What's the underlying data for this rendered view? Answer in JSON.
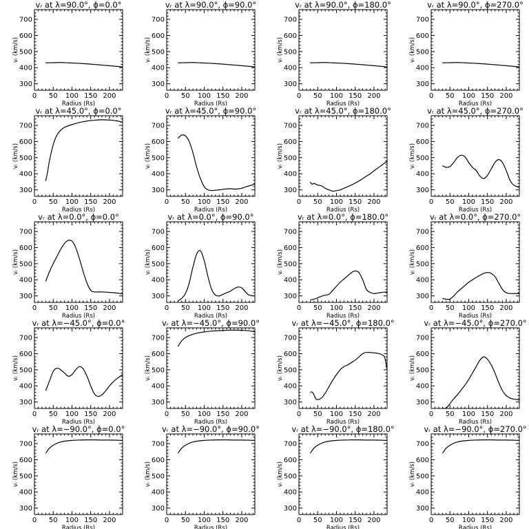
{
  "chart_data": [
    {
      "type": "line",
      "title": "vᵣ at λ=90.0°, ϕ=0.0°",
      "xlabel": "Radius (Rs)",
      "ylabel": "vᵣ (km/s)",
      "xlim": [
        0,
        235
      ],
      "ylim": [
        260,
        760
      ],
      "xticks": [
        0,
        50,
        100,
        150,
        200
      ],
      "yticks": [
        300,
        400,
        500,
        600,
        700
      ],
      "x": [
        30,
        50,
        70,
        90,
        110,
        130,
        150,
        170,
        190,
        210,
        235
      ],
      "y": [
        430,
        431,
        432,
        430,
        428,
        425,
        422,
        418,
        414,
        410,
        405
      ]
    },
    {
      "type": "line",
      "title": "vᵣ at λ=90.0°, ϕ=90.0°",
      "xlabel": "Radius (Rs)",
      "ylabel": "vᵣ (km/s)",
      "xlim": [
        0,
        235
      ],
      "ylim": [
        260,
        760
      ],
      "xticks": [
        0,
        50,
        100,
        150,
        200
      ],
      "yticks": [
        300,
        400,
        500,
        600,
        700
      ],
      "x": [
        30,
        50,
        70,
        90,
        110,
        130,
        150,
        170,
        190,
        210,
        235
      ],
      "y": [
        430,
        431,
        432,
        430,
        428,
        425,
        422,
        418,
        414,
        410,
        405
      ]
    },
    {
      "type": "line",
      "title": "vᵣ at λ=90.0°, ϕ=180.0°",
      "xlabel": "Radius (Rs)",
      "ylabel": "vᵣ (km/s)",
      "xlim": [
        0,
        235
      ],
      "ylim": [
        260,
        760
      ],
      "xticks": [
        0,
        50,
        100,
        150,
        200
      ],
      "yticks": [
        300,
        400,
        500,
        600,
        700
      ],
      "x": [
        30,
        50,
        70,
        90,
        110,
        130,
        150,
        170,
        190,
        210,
        235
      ],
      "y": [
        430,
        431,
        432,
        430,
        428,
        425,
        422,
        418,
        414,
        410,
        405
      ]
    },
    {
      "type": "line",
      "title": "vᵣ at λ=90.0°, ϕ=270.0°",
      "xlabel": "Radius (Rs)",
      "ylabel": "vᵣ (km/s)",
      "xlim": [
        0,
        235
      ],
      "ylim": [
        260,
        760
      ],
      "xticks": [
        0,
        50,
        100,
        150,
        200
      ],
      "yticks": [
        300,
        400,
        500,
        600,
        700
      ],
      "x": [
        30,
        50,
        70,
        90,
        110,
        130,
        150,
        170,
        190,
        210,
        235
      ],
      "y": [
        430,
        431,
        432,
        430,
        428,
        425,
        422,
        418,
        414,
        410,
        405
      ]
    },
    {
      "type": "line",
      "title": "vᵣ at λ=45.0°, ϕ=0.0°",
      "xlabel": "Radius (Rs)",
      "ylabel": "vᵣ (km/s)",
      "xlim": [
        0,
        235
      ],
      "ylim": [
        260,
        760
      ],
      "xticks": [
        0,
        50,
        100,
        150,
        200
      ],
      "yticks": [
        300,
        400,
        500,
        600,
        700
      ],
      "x": [
        30,
        35,
        40,
        50,
        60,
        70,
        80,
        100,
        120,
        140,
        160,
        180,
        200,
        220,
        235
      ],
      "y": [
        355,
        410,
        480,
        580,
        640,
        670,
        688,
        705,
        718,
        727,
        732,
        735,
        733,
        728,
        720
      ]
    },
    {
      "type": "line",
      "title": "vᵣ at λ=45.0°, ϕ=90.0°",
      "xlabel": "Radius (Rs)",
      "ylabel": "vᵣ (km/s)",
      "xlim": [
        0,
        235
      ],
      "ylim": [
        260,
        760
      ],
      "xticks": [
        0,
        50,
        100,
        150,
        200
      ],
      "yticks": [
        300,
        400,
        500,
        600,
        700
      ],
      "x": [
        30,
        40,
        50,
        60,
        70,
        80,
        90,
        100,
        110,
        120,
        130,
        140,
        150,
        160,
        170,
        180,
        190,
        200,
        210,
        220,
        235
      ],
      "y": [
        620,
        640,
        635,
        600,
        530,
        440,
        370,
        320,
        300,
        296,
        298,
        300,
        303,
        306,
        307,
        305,
        306,
        310,
        318,
        325,
        335
      ]
    },
    {
      "type": "line",
      "title": "vᵣ at λ=45.0°, ϕ=180.0°",
      "xlabel": "Radius (Rs)",
      "ylabel": "vᵣ (km/s)",
      "xlim": [
        0,
        235
      ],
      "ylim": [
        260,
        760
      ],
      "xticks": [
        0,
        50,
        100,
        150,
        200
      ],
      "yticks": [
        300,
        400,
        500,
        600,
        700
      ],
      "x": [
        30,
        35,
        40,
        50,
        60,
        70,
        80,
        90,
        100,
        110,
        120,
        130,
        140,
        150,
        160,
        170,
        180,
        190,
        200,
        210,
        220,
        235
      ],
      "y": [
        350,
        335,
        340,
        330,
        325,
        310,
        300,
        292,
        295,
        300,
        310,
        320,
        330,
        342,
        355,
        370,
        385,
        400,
        418,
        435,
        452,
        478
      ]
    },
    {
      "type": "line",
      "title": "vᵣ at λ=45.0°, ϕ=270.0°",
      "xlabel": "Radius (Rs)",
      "ylabel": "vᵣ (km/s)",
      "xlim": [
        0,
        235
      ],
      "ylim": [
        260,
        760
      ],
      "xticks": [
        0,
        50,
        100,
        150,
        200
      ],
      "yticks": [
        300,
        400,
        500,
        600,
        700
      ],
      "x": [
        30,
        40,
        50,
        60,
        70,
        80,
        90,
        100,
        110,
        120,
        130,
        140,
        150,
        160,
        170,
        180,
        190,
        200,
        210,
        220,
        235
      ],
      "y": [
        450,
        440,
        445,
        470,
        500,
        515,
        505,
        470,
        440,
        420,
        385,
        370,
        390,
        430,
        470,
        488,
        470,
        420,
        360,
        330,
        315
      ]
    },
    {
      "type": "line",
      "title": "vᵣ at λ=0.0°, ϕ=0.0°",
      "xlabel": "Radius (Rs)",
      "ylabel": "vᵣ (km/s)",
      "xlim": [
        0,
        235
      ],
      "ylim": [
        260,
        760
      ],
      "xticks": [
        0,
        50,
        100,
        150,
        200
      ],
      "yticks": [
        300,
        400,
        500,
        600,
        700
      ],
      "x": [
        30,
        40,
        50,
        60,
        70,
        80,
        90,
        100,
        110,
        120,
        130,
        140,
        150,
        160,
        180,
        200,
        220,
        235
      ],
      "y": [
        390,
        450,
        500,
        545,
        590,
        625,
        645,
        640,
        600,
        530,
        450,
        380,
        335,
        325,
        325,
        322,
        318,
        312
      ]
    },
    {
      "type": "line",
      "title": "vᵣ at λ=0.0°, ϕ=90.0°",
      "xlabel": "Radius (Rs)",
      "ylabel": "vᵣ (km/s)",
      "xlim": [
        0,
        235
      ],
      "ylim": [
        260,
        760
      ],
      "xticks": [
        0,
        50,
        100,
        150,
        200
      ],
      "yticks": [
        300,
        400,
        500,
        600,
        700
      ],
      "x": [
        30,
        40,
        50,
        60,
        70,
        80,
        90,
        100,
        110,
        120,
        130,
        140,
        150,
        160,
        170,
        180,
        190,
        200,
        210,
        220,
        235
      ],
      "y": [
        270,
        285,
        315,
        380,
        480,
        560,
        580,
        520,
        420,
        340,
        305,
        300,
        310,
        320,
        330,
        345,
        355,
        350,
        325,
        305,
        300
      ]
    },
    {
      "type": "line",
      "title": "vᵣ at λ=0.0°, ϕ=180.0°",
      "xlabel": "Radius (Rs)",
      "ylabel": "vᵣ (km/s)",
      "xlim": [
        0,
        235
      ],
      "ylim": [
        260,
        760
      ],
      "xticks": [
        0,
        50,
        100,
        150,
        200
      ],
      "yticks": [
        300,
        400,
        500,
        600,
        700
      ],
      "x": [
        30,
        40,
        50,
        60,
        70,
        80,
        90,
        100,
        110,
        120,
        130,
        140,
        150,
        160,
        170,
        180,
        190,
        200,
        210,
        220,
        235
      ],
      "y": [
        275,
        280,
        288,
        298,
        305,
        310,
        335,
        360,
        385,
        405,
        425,
        445,
        455,
        445,
        400,
        340,
        322,
        315,
        318,
        322,
        325
      ]
    },
    {
      "type": "line",
      "title": "vᵣ at λ=0.0°, ϕ=270.0°",
      "xlabel": "Radius (Rs)",
      "ylabel": "vᵣ (km/s)",
      "xlim": [
        0,
        235
      ],
      "ylim": [
        260,
        760
      ],
      "xticks": [
        0,
        50,
        100,
        150,
        200
      ],
      "yticks": [
        300,
        400,
        500,
        600,
        700
      ],
      "x": [
        30,
        40,
        50,
        60,
        70,
        80,
        90,
        100,
        110,
        120,
        130,
        140,
        150,
        160,
        170,
        180,
        190,
        200,
        210,
        220,
        235
      ],
      "y": [
        285,
        280,
        280,
        300,
        325,
        345,
        365,
        385,
        400,
        415,
        428,
        440,
        445,
        440,
        420,
        380,
        340,
        320,
        315,
        315,
        315
      ]
    },
    {
      "type": "line",
      "title": "vᵣ at λ=−45.0°, ϕ=0.0°",
      "xlabel": "Radius (Rs)",
      "ylabel": "vᵣ (km/s)",
      "xlim": [
        0,
        235
      ],
      "ylim": [
        260,
        760
      ],
      "xticks": [
        0,
        50,
        100,
        150,
        200
      ],
      "yticks": [
        300,
        400,
        500,
        600,
        700
      ],
      "x": [
        30,
        40,
        50,
        60,
        70,
        80,
        90,
        100,
        110,
        120,
        130,
        140,
        150,
        160,
        170,
        180,
        190,
        200,
        210,
        220,
        235
      ],
      "y": [
        370,
        430,
        490,
        510,
        500,
        480,
        460,
        470,
        500,
        520,
        505,
        460,
        400,
        350,
        335,
        345,
        370,
        400,
        425,
        445,
        470
      ]
    },
    {
      "type": "line",
      "title": "vᵣ at λ=−45.0°, ϕ=90.0°",
      "xlabel": "Radius (Rs)",
      "ylabel": "vᵣ (km/s)",
      "xlim": [
        0,
        235
      ],
      "ylim": [
        260,
        760
      ],
      "xticks": [
        0,
        50,
        100,
        150,
        200
      ],
      "yticks": [
        300,
        400,
        500,
        600,
        700
      ],
      "x": [
        30,
        40,
        50,
        60,
        70,
        80,
        100,
        120,
        140,
        160,
        180,
        200,
        220,
        235
      ],
      "y": [
        645,
        680,
        700,
        712,
        720,
        727,
        735,
        740,
        743,
        745,
        746,
        745,
        742,
        735
      ]
    },
    {
      "type": "line",
      "title": "vᵣ at λ=−45.0°, ϕ=180.0°",
      "xlabel": "Radius (Rs)",
      "ylabel": "vᵣ (km/s)",
      "xlim": [
        0,
        235
      ],
      "ylim": [
        260,
        760
      ],
      "xticks": [
        0,
        50,
        100,
        150,
        200
      ],
      "yticks": [
        300,
        400,
        500,
        600,
        700
      ],
      "x": [
        30,
        35,
        40,
        45,
        50,
        60,
        70,
        80,
        90,
        100,
        110,
        120,
        130,
        140,
        150,
        160,
        170,
        180,
        190,
        200,
        210,
        220,
        228,
        232,
        235
      ],
      "y": [
        360,
        362,
        345,
        320,
        315,
        325,
        355,
        395,
        435,
        470,
        500,
        520,
        530,
        545,
        560,
        580,
        600,
        608,
        607,
        605,
        602,
        595,
        580,
        540,
        500
      ]
    },
    {
      "type": "line",
      "title": "vᵣ at λ=−45.0°, ϕ=270.0°",
      "xlabel": "Radius (Rs)",
      "ylabel": "vᵣ (km/s)",
      "xlim": [
        0,
        235
      ],
      "ylim": [
        260,
        760
      ],
      "xticks": [
        0,
        50,
        100,
        150,
        200
      ],
      "yticks": [
        300,
        400,
        500,
        600,
        700
      ],
      "x": [
        30,
        40,
        50,
        60,
        70,
        80,
        90,
        100,
        110,
        120,
        130,
        140,
        150,
        160,
        170,
        180,
        190,
        200,
        210,
        220,
        235
      ],
      "y": [
        262,
        262,
        290,
        320,
        345,
        375,
        405,
        440,
        480,
        520,
        560,
        580,
        565,
        530,
        480,
        420,
        370,
        340,
        325,
        318,
        312
      ]
    },
    {
      "type": "line",
      "title": "vᵣ at λ=−90.0°, ϕ=0.0°",
      "xlabel": "Radius (Rs)",
      "ylabel": "vᵣ (km/s)",
      "xlim": [
        0,
        235
      ],
      "ylim": [
        260,
        760
      ],
      "xticks": [
        0,
        50,
        100,
        150,
        200
      ],
      "yticks": [
        300,
        400,
        500,
        600,
        700
      ],
      "x": [
        30,
        40,
        50,
        60,
        70,
        80,
        100,
        120,
        140,
        160,
        180,
        200,
        220,
        235
      ],
      "y": [
        640,
        672,
        690,
        702,
        710,
        715,
        720,
        722,
        723,
        723,
        722,
        722,
        721,
        720
      ]
    },
    {
      "type": "line",
      "title": "vᵣ at λ=−90.0°, ϕ=90.0°",
      "xlabel": "Radius (Rs)",
      "ylabel": "vᵣ (km/s)",
      "xlim": [
        0,
        235
      ],
      "ylim": [
        260,
        760
      ],
      "xticks": [
        0,
        50,
        100,
        150,
        200
      ],
      "yticks": [
        300,
        400,
        500,
        600,
        700
      ],
      "x": [
        30,
        40,
        50,
        60,
        70,
        80,
        100,
        120,
        140,
        160,
        180,
        200,
        220,
        235
      ],
      "y": [
        640,
        672,
        690,
        702,
        710,
        715,
        720,
        722,
        723,
        723,
        722,
        722,
        721,
        720
      ]
    },
    {
      "type": "line",
      "title": "vᵣ at λ=−90.0°, ϕ=180.0°",
      "xlabel": "Radius (Rs)",
      "ylabel": "vᵣ (km/s)",
      "xlim": [
        0,
        235
      ],
      "ylim": [
        260,
        760
      ],
      "xticks": [
        0,
        50,
        100,
        150,
        200
      ],
      "yticks": [
        300,
        400,
        500,
        600,
        700
      ],
      "x": [
        30,
        40,
        50,
        60,
        70,
        80,
        100,
        120,
        140,
        160,
        180,
        200,
        220,
        235
      ],
      "y": [
        640,
        672,
        690,
        702,
        710,
        715,
        720,
        722,
        723,
        723,
        722,
        722,
        721,
        720
      ]
    },
    {
      "type": "line",
      "title": "vᵣ at λ=−90.0°, ϕ=270.0°",
      "xlabel": "Radius (Rs)",
      "ylabel": "vᵣ (km/s)",
      "xlim": [
        0,
        235
      ],
      "ylim": [
        260,
        760
      ],
      "xticks": [
        0,
        50,
        100,
        150,
        200
      ],
      "yticks": [
        300,
        400,
        500,
        600,
        700
      ],
      "x": [
        30,
        40,
        50,
        60,
        70,
        80,
        100,
        120,
        140,
        160,
        180,
        200,
        220,
        235
      ],
      "y": [
        640,
        672,
        690,
        702,
        710,
        715,
        720,
        722,
        723,
        723,
        722,
        722,
        721,
        720
      ]
    }
  ]
}
